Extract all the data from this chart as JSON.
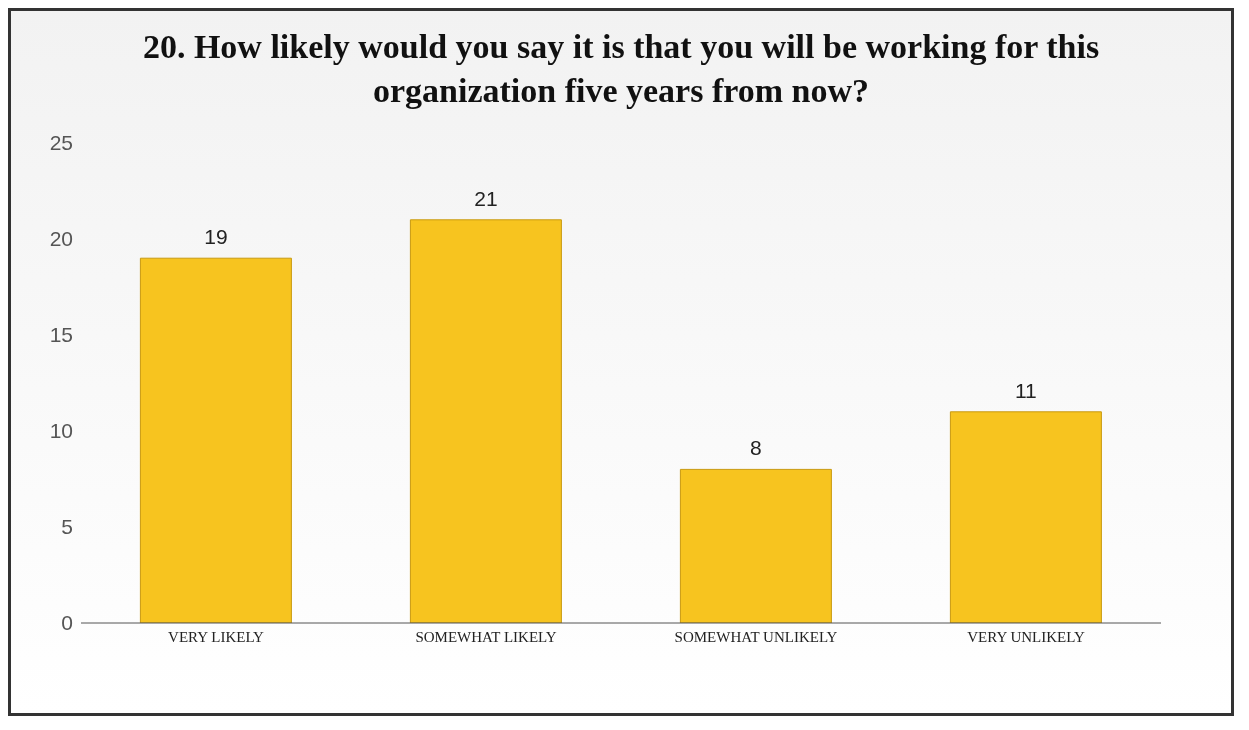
{
  "chart_data": {
    "type": "bar",
    "title": "20. How likely would you say it is that you will be working for this organization five years from now?",
    "categories": [
      "VERY LIKELY",
      "SOMEWHAT LIKELY",
      "SOMEWHAT UNLIKELY",
      "VERY UNLIKELY"
    ],
    "values": [
      19,
      21,
      8,
      11
    ],
    "color": "#f7c41f",
    "ylim": [
      0,
      25
    ],
    "yticks": [
      0,
      5,
      10,
      15,
      20,
      25
    ],
    "data_labels": true
  }
}
